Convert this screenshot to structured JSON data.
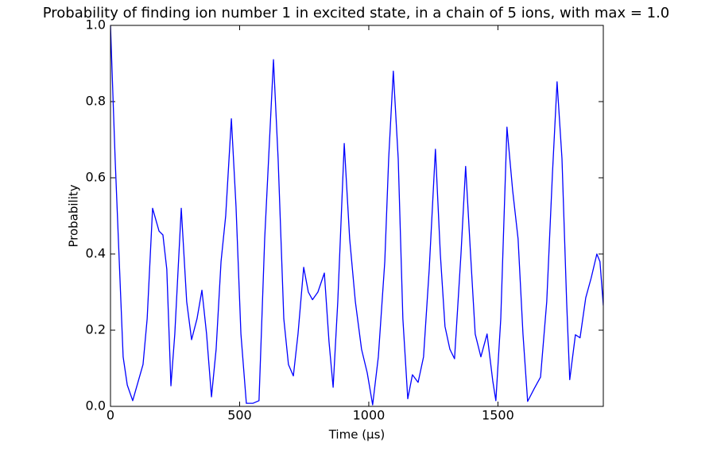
{
  "chart_data": {
    "type": "line",
    "title": "Probability of finding ion number 1 in excited state, in a chain of 5 ions, with max = 1.0",
    "x_label": "Time (μs)",
    "y_label": "Probability",
    "x": [
      0,
      18,
      34,
      49,
      65,
      86,
      126,
      142,
      163,
      188,
      203,
      218,
      234,
      249,
      274,
      295,
      314,
      335,
      354,
      372,
      391,
      409,
      428,
      446,
      468,
      486,
      505,
      526,
      551,
      575,
      597,
      631,
      649,
      671,
      689,
      708,
      726,
      748,
      766,
      782,
      803,
      828,
      846,
      862,
      880,
      905,
      926,
      948,
      972,
      994,
      1015,
      1037,
      1062,
      1077,
      1095,
      1114,
      1132,
      1151,
      1169,
      1191,
      1212,
      1234,
      1258,
      1277,
      1295,
      1314,
      1332,
      1357,
      1375,
      1394,
      1412,
      1434,
      1458,
      1480,
      1492,
      1511,
      1535,
      1557,
      1578,
      1597,
      1615,
      1640,
      1665,
      1689,
      1711,
      1729,
      1748,
      1766,
      1778,
      1800,
      1818,
      1840,
      1861,
      1883,
      1895,
      1908
    ],
    "series": [
      {
        "name": "Probability",
        "color": "#0000ff",
        "values": [
          1.0,
          0.65,
          0.38,
          0.13,
          0.056,
          0.015,
          0.11,
          0.23,
          0.52,
          0.46,
          0.45,
          0.36,
          0.054,
          0.19,
          0.52,
          0.275,
          0.175,
          0.23,
          0.305,
          0.19,
          0.025,
          0.15,
          0.38,
          0.5,
          0.755,
          0.525,
          0.19,
          0.008,
          0.008,
          0.015,
          0.44,
          0.91,
          0.65,
          0.23,
          0.11,
          0.08,
          0.19,
          0.365,
          0.3,
          0.28,
          0.3,
          0.35,
          0.17,
          0.05,
          0.275,
          0.69,
          0.44,
          0.275,
          0.15,
          0.088,
          0.004,
          0.13,
          0.38,
          0.65,
          0.88,
          0.65,
          0.23,
          0.02,
          0.083,
          0.063,
          0.13,
          0.36,
          0.675,
          0.4,
          0.21,
          0.15,
          0.125,
          0.4,
          0.63,
          0.4,
          0.19,
          0.13,
          0.19,
          0.067,
          0.015,
          0.23,
          0.733,
          0.567,
          0.44,
          0.19,
          0.013,
          0.046,
          0.077,
          0.275,
          0.61,
          0.852,
          0.65,
          0.275,
          0.07,
          0.188,
          0.18,
          0.285,
          0.337,
          0.4,
          0.38,
          0.265
        ]
      }
    ],
    "xlim": [
      0,
      1908
    ],
    "xticks": [
      0,
      500,
      1000,
      1500
    ],
    "ylim": [
      0,
      1
    ],
    "yticks": [
      {
        "value": 0,
        "label": "0.0"
      },
      0.2,
      0.4,
      0.6,
      0.8,
      {
        "value": 1,
        "label": "1.0"
      }
    ],
    "grid": false
  }
}
